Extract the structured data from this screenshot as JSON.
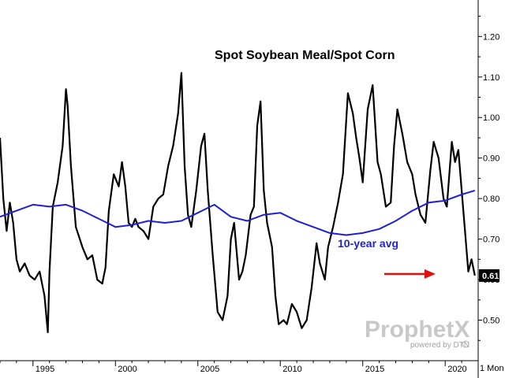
{
  "chart_data": {
    "type": "line",
    "title": "Spot Soybean Meal/Spot Corn",
    "xlabel": "",
    "ylabel": "",
    "xlim": [
      1993.0,
      2022.0
    ],
    "ylim": [
      0.4,
      1.29
    ],
    "x_ticks": [
      "1995",
      "2000",
      "2005",
      "2010",
      "2015",
      "2020"
    ],
    "x_tick_values": [
      1995,
      2000,
      2005,
      2010,
      2015,
      2020
    ],
    "y_ticks": [
      "0.50",
      "0.60",
      "0.70",
      "0.80",
      "0.90",
      "1.00",
      "1.10",
      "1.20"
    ],
    "y_tick_values": [
      0.5,
      0.6,
      0.7,
      0.8,
      0.9,
      1.0,
      1.1,
      1.2
    ],
    "period_label": "1 Mon",
    "grid": false,
    "series": [
      {
        "name": "",
        "color": "#000000",
        "x": [
          1993.0,
          1993.2,
          1993.4,
          1993.6,
          1993.8,
          1994.0,
          1994.2,
          1994.5,
          1994.8,
          1995.1,
          1995.4,
          1995.7,
          1995.9,
          1996.0,
          1996.2,
          1996.5,
          1996.8,
          1997.0,
          1997.1,
          1997.3,
          1997.6,
          1998.0,
          1998.3,
          1998.6,
          1998.9,
          1999.2,
          1999.4,
          1999.6,
          1999.9,
          2000.2,
          2000.4,
          2000.6,
          2000.8,
          2001.0,
          2001.2,
          2001.4,
          2001.7,
          2002.0,
          2002.3,
          2002.6,
          2002.9,
          2003.2,
          2003.5,
          2003.8,
          2004.0,
          2004.2,
          2004.4,
          2004.6,
          2004.9,
          2005.2,
          2005.4,
          2005.6,
          2005.9,
          2006.2,
          2006.5,
          2006.8,
          2007.0,
          2007.2,
          2007.5,
          2007.7,
          2007.9,
          2008.2,
          2008.4,
          2008.6,
          2008.8,
          2009.0,
          2009.2,
          2009.5,
          2009.7,
          2009.9,
          2010.2,
          2010.4,
          2010.7,
          2011.0,
          2011.3,
          2011.6,
          2011.9,
          2012.2,
          2012.4,
          2012.7,
          2012.9,
          2013.2,
          2013.5,
          2013.8,
          2014.1,
          2014.4,
          2014.6,
          2014.8,
          2015.0,
          2015.3,
          2015.6,
          2015.9,
          2016.1,
          2016.4,
          2016.7,
          2016.9,
          2017.1,
          2017.4,
          2017.7,
          2018.0,
          2018.2,
          2018.5,
          2018.8,
          2019.1,
          2019.3,
          2019.6,
          2019.9,
          2020.1,
          2020.4,
          2020.6,
          2020.8,
          2021.0,
          2021.2,
          2021.4,
          2021.6,
          2021.8
        ],
        "y": [
          0.95,
          0.8,
          0.72,
          0.79,
          0.74,
          0.65,
          0.62,
          0.64,
          0.61,
          0.6,
          0.62,
          0.56,
          0.47,
          0.62,
          0.78,
          0.84,
          0.93,
          1.07,
          1.03,
          0.88,
          0.73,
          0.68,
          0.65,
          0.66,
          0.6,
          0.59,
          0.63,
          0.77,
          0.86,
          0.83,
          0.89,
          0.83,
          0.74,
          0.73,
          0.75,
          0.73,
          0.72,
          0.7,
          0.78,
          0.8,
          0.81,
          0.88,
          0.93,
          1.01,
          1.11,
          0.88,
          0.76,
          0.73,
          0.82,
          0.93,
          0.96,
          0.82,
          0.66,
          0.52,
          0.5,
          0.56,
          0.7,
          0.74,
          0.6,
          0.62,
          0.66,
          0.76,
          0.78,
          0.98,
          1.04,
          0.82,
          0.74,
          0.68,
          0.56,
          0.49,
          0.5,
          0.49,
          0.54,
          0.52,
          0.48,
          0.5,
          0.58,
          0.69,
          0.64,
          0.6,
          0.68,
          0.73,
          0.79,
          0.86,
          1.06,
          1.01,
          0.95,
          0.9,
          0.84,
          1.02,
          1.08,
          0.89,
          0.86,
          0.78,
          0.79,
          0.93,
          1.02,
          0.96,
          0.89,
          0.86,
          0.81,
          0.76,
          0.74,
          0.87,
          0.94,
          0.9,
          0.8,
          0.78,
          0.94,
          0.89,
          0.92,
          0.82,
          0.72,
          0.62,
          0.65,
          0.61
        ]
      },
      {
        "name": "10-year avg",
        "color": "#1f1fd6",
        "x": [
          1993.0,
          1994.0,
          1995.0,
          1996.0,
          1997.0,
          1998.0,
          1999.0,
          2000.0,
          2001.0,
          2002.0,
          2003.0,
          2004.0,
          2005.0,
          2006.0,
          2007.0,
          2008.0,
          2009.0,
          2010.0,
          2011.0,
          2012.0,
          2013.0,
          2014.0,
          2015.0,
          2016.0,
          2017.0,
          2018.0,
          2019.0,
          2020.0,
          2021.0,
          2021.8
        ],
        "y": [
          0.755,
          0.77,
          0.785,
          0.78,
          0.785,
          0.77,
          0.75,
          0.73,
          0.735,
          0.745,
          0.74,
          0.745,
          0.765,
          0.785,
          0.755,
          0.745,
          0.76,
          0.765,
          0.745,
          0.73,
          0.715,
          0.71,
          0.715,
          0.725,
          0.745,
          0.77,
          0.79,
          0.795,
          0.81,
          0.82
        ]
      }
    ],
    "annotations": {
      "avg_label": "10-year avg",
      "avg_label_color": "#1f1fd6",
      "arrow_color": "#e01010",
      "last_value_label": "0.61",
      "last_value": 0.61
    },
    "watermark": {
      "brand": "ProphetX",
      "powered_by": "powered by DTN"
    }
  }
}
